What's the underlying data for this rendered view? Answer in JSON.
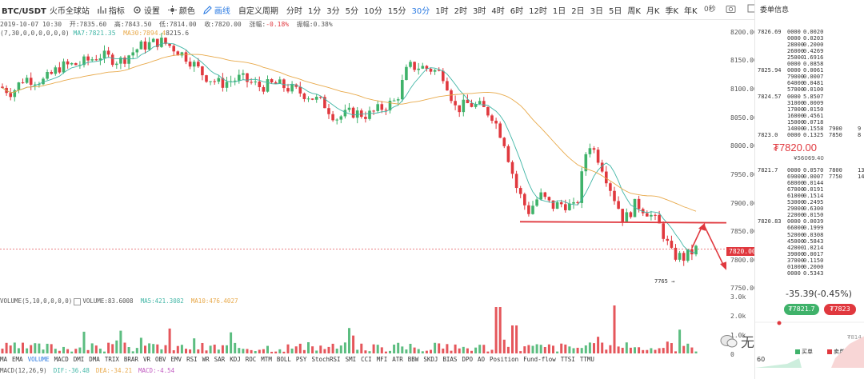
{
  "toolbar": {
    "symbol": "BTC/USDT",
    "exchange": "火币全球站",
    "indicator_label": "指标",
    "settings_label": "设置",
    "theme_label": "颜色",
    "draw_label": "画线",
    "custom_period_label": "自定义周期",
    "periods": [
      "分时",
      "1分",
      "3分",
      "5分",
      "10分",
      "15分",
      "30分",
      "1时",
      "2时",
      "3时",
      "4时",
      "6时",
      "12时",
      "1日",
      "2日",
      "3日",
      "5日",
      "周K",
      "月K",
      "季K",
      "年K"
    ],
    "selected_period": "30分",
    "seconds_label": "0秒"
  },
  "info": {
    "datetime": "2019-10-07 10:30",
    "open": "开:7835.60",
    "high": "高:7843.50",
    "low": "低:7814.00",
    "close": "收:7820.00",
    "change": "涨幅:",
    "change_val": "-0.18%",
    "amplitude": "振幅:0.38%",
    "params": "(7,30,0,0,0,0,0,0)",
    "ma7": "MA7:7821.35",
    "ma30": "MA30:7894.4",
    "ma30_tail": "8215.6"
  },
  "yaxis": {
    "labels": [
      "8200.00",
      "8150.00",
      "8100.00",
      "8050.00",
      "8000.00",
      "7950.00",
      "7900.00",
      "7850.00",
      "7800.00",
      "7750.00"
    ],
    "current_price": "7820.00",
    "vol_labels": [
      "3.0k",
      "2.0k",
      "1.0k",
      "0"
    ]
  },
  "chart_annotations": {
    "low_label": "7765"
  },
  "volume": {
    "params": "VOLUME(5,10,0,0,0,0)",
    "value": "VOLUME:83.6008",
    "ma5": "MA5:421.3082",
    "ma10": "MA10:476.4027"
  },
  "indicators": [
    "MA",
    "EMA",
    "VOLUME",
    "MACD",
    "DMI",
    "DMA",
    "TRIX",
    "BRAR",
    "VR",
    "OBV",
    "EMV",
    "RSI",
    "WR",
    "SAR",
    "KDJ",
    "ROC",
    "MTM",
    "BOLL",
    "PSY",
    "StochRSI",
    "SMI",
    "CCI",
    "MFI",
    "ATR",
    "BBW",
    "SKDJ",
    "BIAS",
    "DPO",
    "AO",
    "Position",
    "Fund-flow",
    "TTSI",
    "TTMU"
  ],
  "selected_indicator": "VOLUME",
  "macd": {
    "params": "MACD(12,26,9)",
    "dif": "DIF:-36.48",
    "dea": "DEA:-34.21",
    "macd": "MACD:-4.54"
  },
  "sidebar": {
    "title": "委单信息",
    "asks": [
      {
        "p": "7826.69",
        "a": "0000",
        "t": "0.0020"
      },
      {
        "p": "",
        "a": "0000",
        "t": "0.0203"
      },
      {
        "p": "",
        "a": "28000",
        "t": "0.2000"
      },
      {
        "p": "",
        "a": "26000",
        "t": "0.4269"
      },
      {
        "p": "",
        "a": "25000",
        "t": "1.6916"
      },
      {
        "p": "",
        "a": "0000",
        "t": "0.0858"
      },
      {
        "p": "7825.94",
        "a": "0000",
        "t": "0.0061"
      },
      {
        "p": "",
        "a": "79000",
        "t": "0.0007"
      },
      {
        "p": "",
        "a": "64000",
        "t": "0.0481"
      },
      {
        "p": "",
        "a": "57000",
        "t": "0.0100"
      },
      {
        "p": "7824.57",
        "a": "0000",
        "t": "5.8507"
      },
      {
        "p": "",
        "a": "31000",
        "t": "0.0009"
      },
      {
        "p": "",
        "a": "17000",
        "t": "0.0150"
      },
      {
        "p": "",
        "a": "16000",
        "t": "0.4561"
      },
      {
        "p": "",
        "a": "15000",
        "t": "0.0718"
      },
      {
        "p": "",
        "a": "14000",
        "t": "0.1558",
        "x1": "7900",
        "x2": "9"
      },
      {
        "p": "7823.0",
        "a": "0000",
        "t": "0.1325",
        "x1": "7850",
        "x2": "8"
      }
    ],
    "last_price": "₮7820.00",
    "last_cny": "¥56069.40",
    "bids": [
      {
        "p": "7821.7",
        "a": "0000",
        "t": "0.0570",
        "x1": "7800",
        "x2": "13"
      },
      {
        "p": "",
        "a": "69000",
        "t": "0.0007",
        "x1": "7750",
        "x2": "14"
      },
      {
        "p": "",
        "a": "68000",
        "t": "0.0144"
      },
      {
        "p": "",
        "a": "67000",
        "t": "0.0191"
      },
      {
        "p": "",
        "a": "61000",
        "t": "0.1514"
      },
      {
        "p": "",
        "a": "53000",
        "t": "0.2495"
      },
      {
        "p": "",
        "a": "29000",
        "t": "0.6300"
      },
      {
        "p": "",
        "a": "22000",
        "t": "0.0150"
      },
      {
        "p": "7820.83",
        "a": "0000",
        "t": "0.0039"
      },
      {
        "p": "",
        "a": "66000",
        "t": "0.1999"
      },
      {
        "p": "",
        "a": "52000",
        "t": "0.0308"
      },
      {
        "p": "",
        "a": "45000",
        "t": "0.5843"
      },
      {
        "p": "",
        "a": "42000",
        "t": "1.0214"
      },
      {
        "p": "",
        "a": "39000",
        "t": "0.0017"
      },
      {
        "p": "",
        "a": "37000",
        "t": "0.1150"
      },
      {
        "p": "",
        "a": "01000",
        "t": "0.2000"
      },
      {
        "p": "",
        "a": "0000",
        "t": "0.5343"
      }
    ],
    "change": "-35.39(-0.45%)",
    "buy_price": "₮7821.7",
    "sell_price": "₮7823",
    "side_tail": "₮814",
    "side_bottom": "60",
    "buy_label": "买单",
    "sell_label": "卖单"
  },
  "watermark": "无极看币",
  "colors": {
    "up": "#3fb26a",
    "down": "#e0383e",
    "ma7": "#41b6a6",
    "ma30": "#e8a94a",
    "accent": "#2a7ae2"
  }
}
